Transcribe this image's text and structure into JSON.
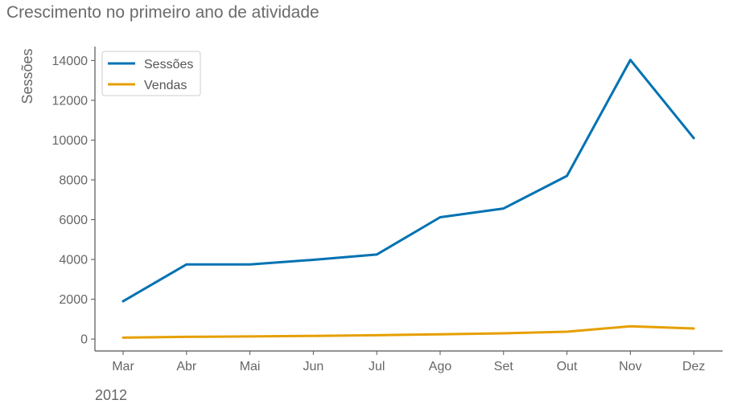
{
  "chart_data": {
    "type": "line",
    "title": "Crescimento no primeiro ano de atividade",
    "xlabel": "2012",
    "ylabel": "Sessões",
    "categories": [
      "Mar",
      "Abr",
      "Mai",
      "Jun",
      "Jul",
      "Ago",
      "Set",
      "Out",
      "Nov",
      "Dez"
    ],
    "yticks": [
      0,
      2000,
      4000,
      6000,
      8000,
      10000,
      12000,
      14000
    ],
    "ylim": [
      -600,
      14700
    ],
    "series": [
      {
        "name": "Sessões",
        "color": "#0072b2",
        "values": [
          1900,
          3750,
          3750,
          3980,
          4250,
          6120,
          6560,
          8200,
          14030,
          10100
        ]
      },
      {
        "name": "Vendas",
        "color": "#e69f00",
        "values": [
          70,
          110,
          130,
          160,
          190,
          240,
          290,
          370,
          640,
          530
        ]
      }
    ],
    "legend_position": "top-left",
    "grid": false,
    "axis_color": "#555555"
  }
}
